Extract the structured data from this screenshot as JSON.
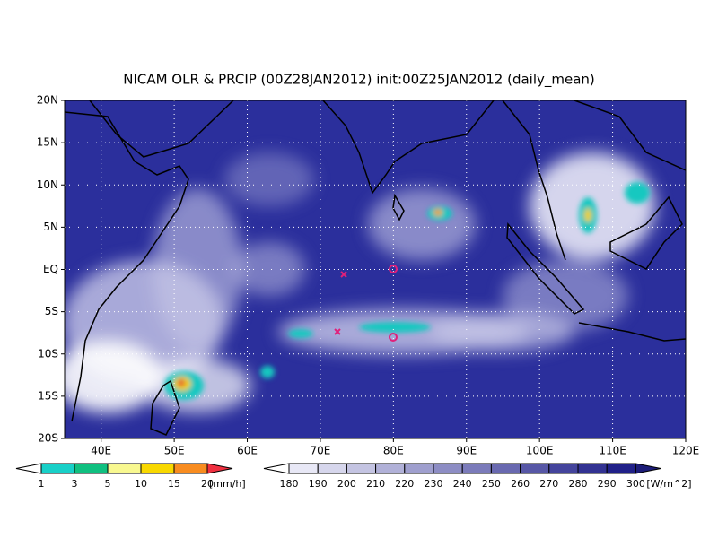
{
  "title": "NICAM OLR & PRCIP (00Z28JAN2012) init:00Z25JAN2012 (daily_mean)",
  "lat_labels": [
    "20N",
    "15N",
    "10N",
    "5N",
    "EQ",
    "5S",
    "10S",
    "15S",
    "20S"
  ],
  "lon_labels": [
    "40E",
    "50E",
    "60E",
    "70E",
    "80E",
    "90E",
    "100E",
    "110E",
    "120E"
  ],
  "precip_legend": {
    "levels": [
      "1",
      "3",
      "5",
      "10",
      "15",
      "20"
    ],
    "unit": "[mm/h]"
  },
  "olr_legend": {
    "levels": [
      "180",
      "190",
      "200",
      "210",
      "220",
      "230",
      "240",
      "250",
      "260",
      "270",
      "280",
      "290",
      "300"
    ],
    "unit": "[W/m^2]"
  }
}
